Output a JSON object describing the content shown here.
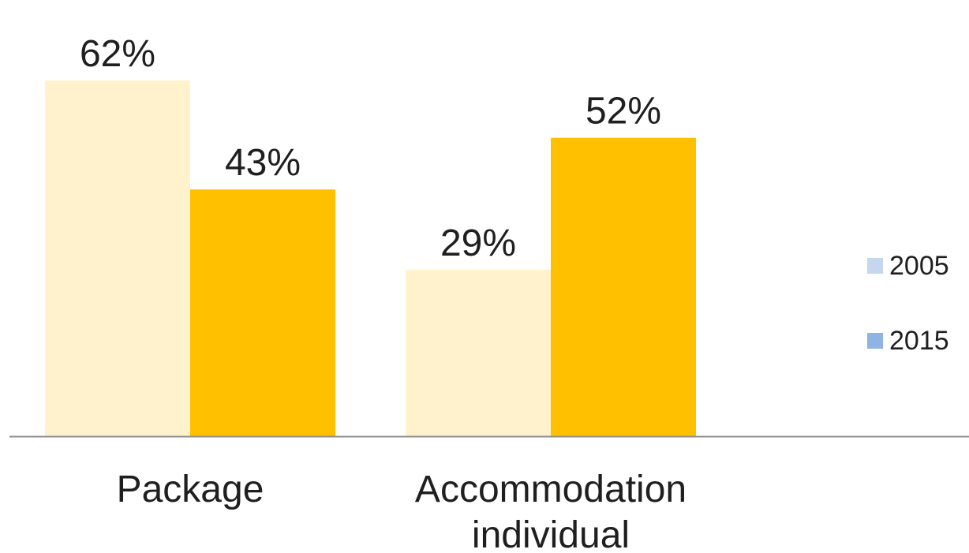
{
  "chart_data": {
    "type": "bar",
    "categories": [
      [
        "Package"
      ],
      [
        "Accommodation",
        "individual"
      ]
    ],
    "series": [
      {
        "name": "2005",
        "values": [
          62,
          29
        ],
        "labels": [
          "62%",
          "29%"
        ],
        "bar_color": "#FFF2CC",
        "legend_color": "#C5D7EE"
      },
      {
        "name": "2015",
        "values": [
          43,
          52
        ],
        "labels": [
          "43%",
          "52%"
        ],
        "bar_color": "#FFC000",
        "legend_color": "#8EB4E3"
      }
    ],
    "ylim": [
      0,
      62
    ],
    "axis_color": "#8C8C8C",
    "legend_position": "right",
    "grid": false
  }
}
